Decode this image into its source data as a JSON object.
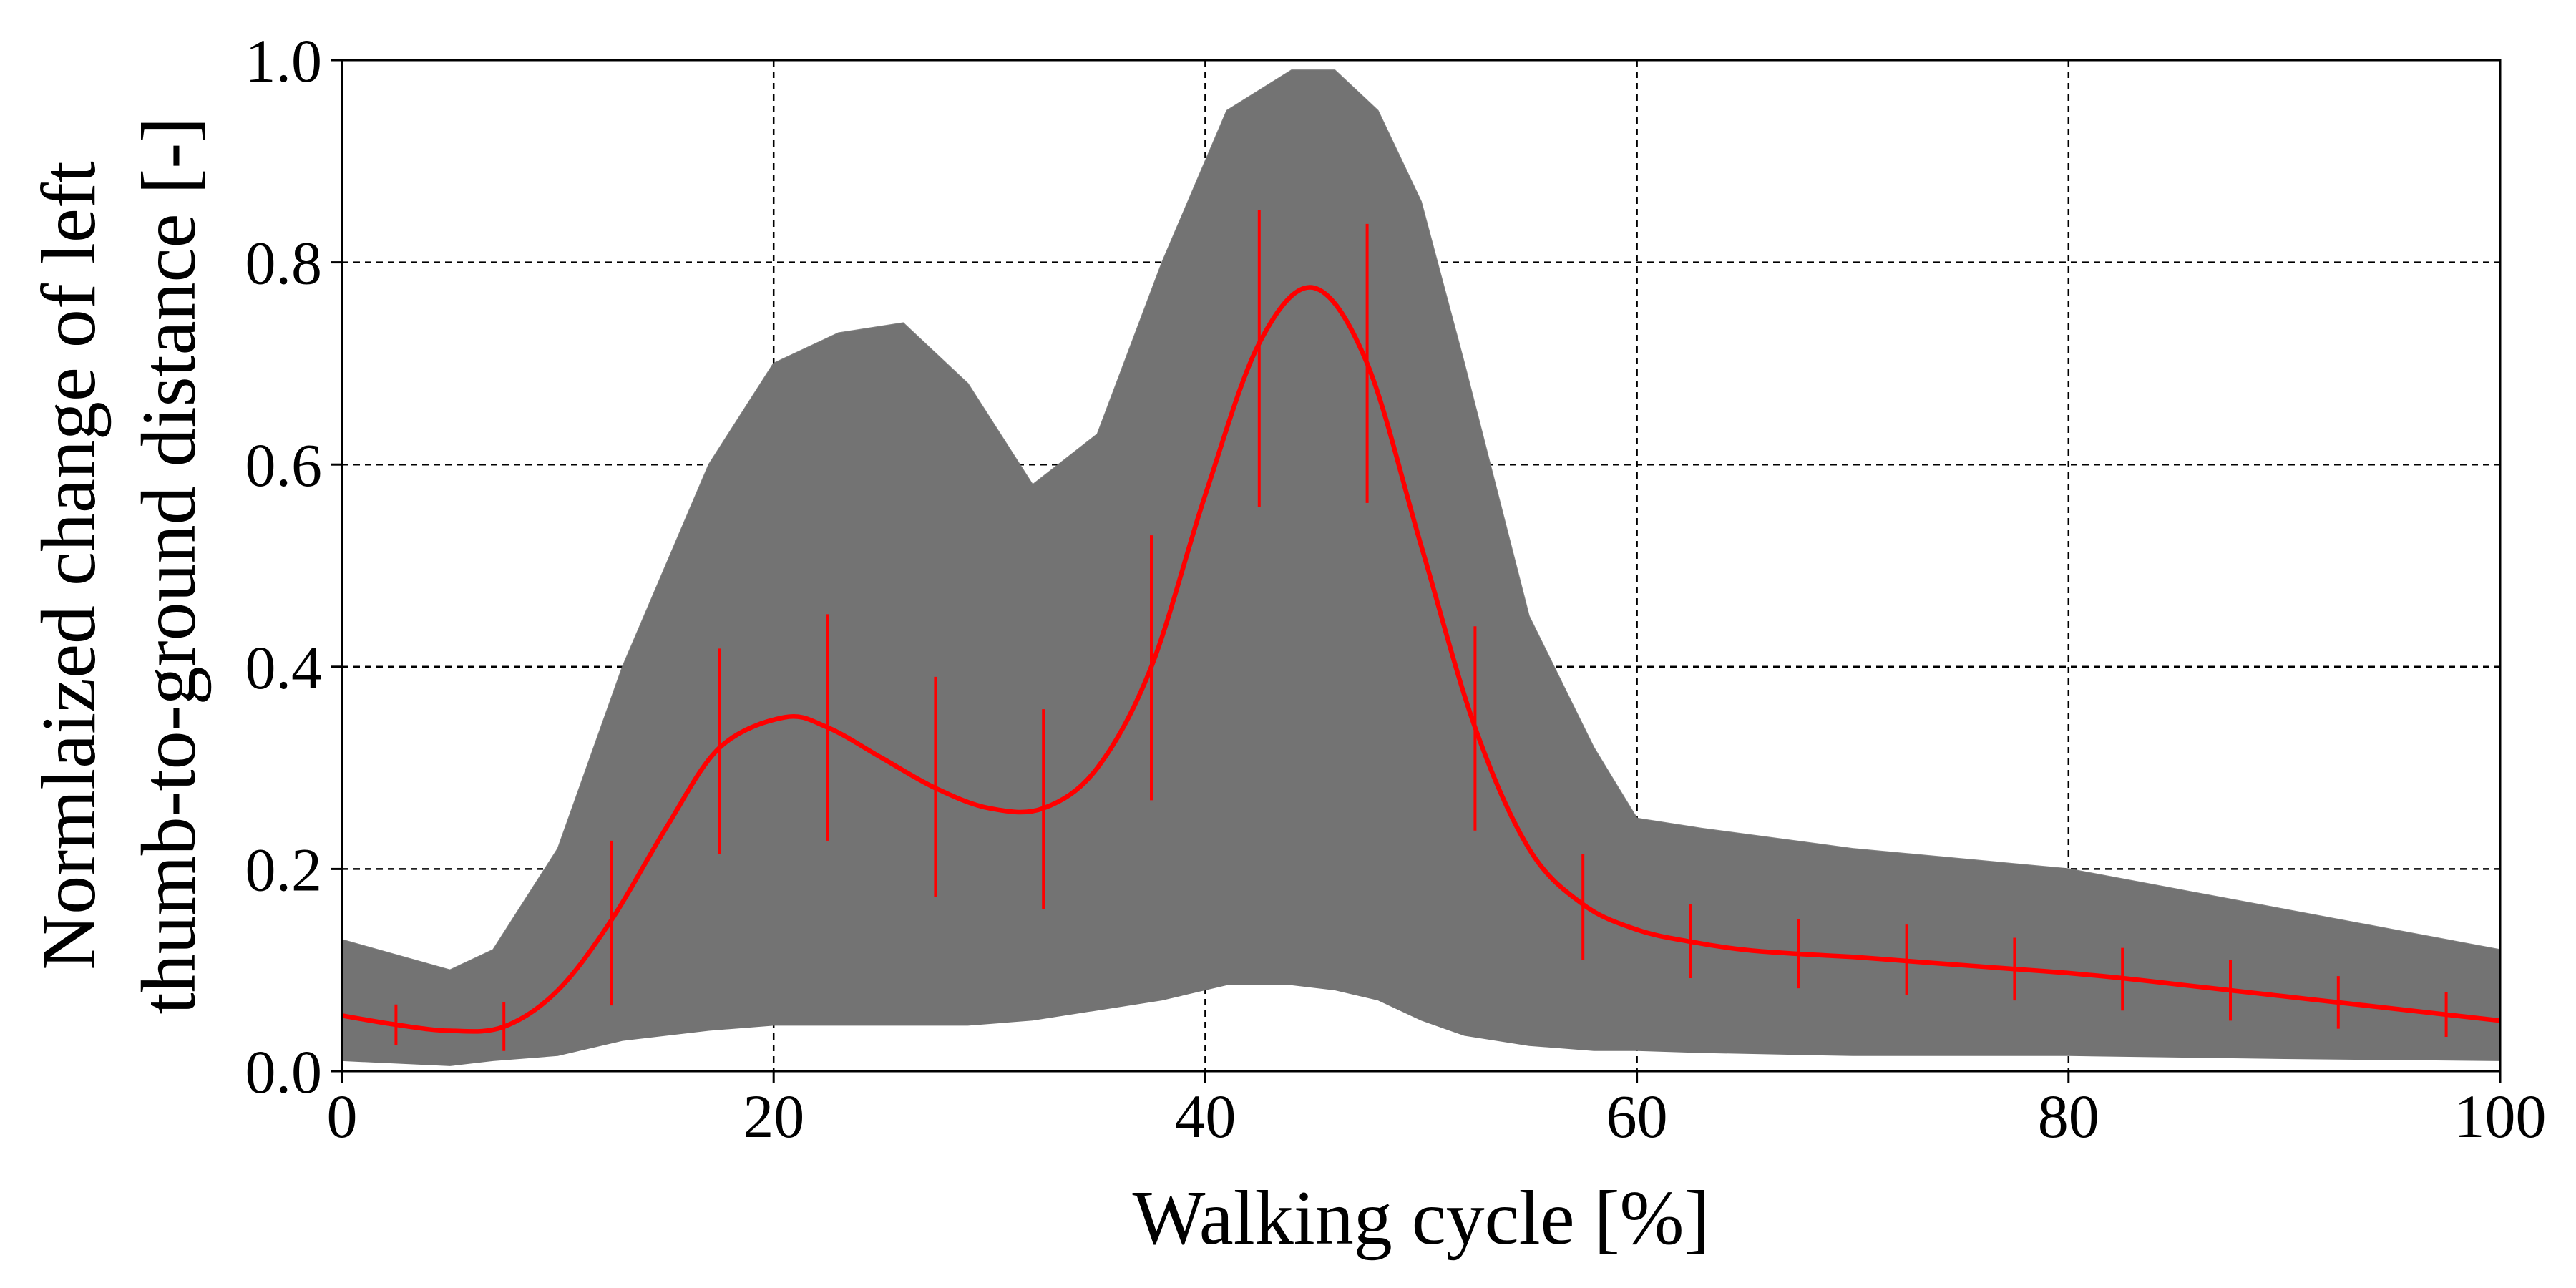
{
  "chart_data": {
    "type": "line",
    "title": "",
    "xlabel": "Walking cycle [%]",
    "ylabel": "Normlaized change of left\nthumb-to-ground distance [-]",
    "ylabel_lines": [
      "Normlaized change of left",
      "thumb-to-ground distance [-]"
    ],
    "xlim": [
      0,
      100
    ],
    "ylim": [
      0,
      1.0
    ],
    "x_ticks": [
      0,
      20,
      40,
      60,
      80,
      100
    ],
    "x_tick_labels": [
      "0",
      "20",
      "40",
      "60",
      "80",
      "100"
    ],
    "y_ticks": [
      0,
      0.2,
      0.4,
      0.6,
      0.8,
      1.0
    ],
    "y_tick_labels": [
      "0.0",
      "0.2",
      "0.4",
      "0.6",
      "0.8",
      "1.0"
    ],
    "grid": true,
    "legend": "none",
    "colors": {
      "individual_trials": "#737373",
      "mean": "#ff0000"
    },
    "individual_trials_envelope": {
      "x": [
        0,
        5,
        7,
        10,
        13,
        17,
        20,
        23,
        26,
        29,
        32,
        35,
        38,
        41,
        44,
        46,
        48,
        50,
        52,
        55,
        58,
        60,
        63,
        70,
        80,
        90,
        100
      ],
      "upper": [
        0.13,
        0.1,
        0.12,
        0.22,
        0.4,
        0.6,
        0.7,
        0.73,
        0.74,
        0.68,
        0.58,
        0.63,
        0.8,
        0.95,
        0.99,
        0.99,
        0.95,
        0.86,
        0.7,
        0.45,
        0.32,
        0.25,
        0.24,
        0.22,
        0.2,
        0.16,
        0.12
      ],
      "lower": [
        0.01,
        0.005,
        0.01,
        0.015,
        0.03,
        0.04,
        0.045,
        0.045,
        0.045,
        0.045,
        0.05,
        0.06,
        0.07,
        0.085,
        0.085,
        0.08,
        0.07,
        0.05,
        0.035,
        0.025,
        0.02,
        0.02,
        0.018,
        0.015,
        0.015,
        0.012,
        0.01
      ]
    },
    "series": [
      {
        "x": [
          0,
          2.5,
          5,
          7.5,
          10,
          12.5,
          15,
          17.5,
          20.5,
          22.5,
          25,
          27.5,
          30,
          32.5,
          35,
          37.5,
          40,
          42.5,
          45,
          47.5,
          50,
          52.5,
          55,
          57.5,
          60,
          62.5,
          65,
          67.5,
          70,
          72.5,
          75,
          77.5,
          80,
          82.5,
          85,
          87.5,
          90,
          92.5,
          95,
          97.5,
          100
        ],
        "y": [
          0.055,
          0.046,
          0.04,
          0.044,
          0.08,
          0.15,
          0.24,
          0.32,
          0.35,
          0.34,
          0.31,
          0.28,
          0.26,
          0.26,
          0.3,
          0.4,
          0.57,
          0.72,
          0.775,
          0.7,
          0.52,
          0.34,
          0.22,
          0.165,
          0.14,
          0.128,
          0.12,
          0.116,
          0.113,
          0.109,
          0.105,
          0.101,
          0.097,
          0.092,
          0.086,
          0.08,
          0.074,
          0.068,
          0.062,
          0.056,
          0.05
        ]
      }
    ],
    "error_bars": {
      "x": [
        2.5,
        7.5,
        12.5,
        17.5,
        22.5,
        27.5,
        32.5,
        37.5,
        42.5,
        47.5,
        52.5,
        57.5,
        62.5,
        67.5,
        72.5,
        77.5,
        82.5,
        87.5,
        92.5,
        97.5
      ],
      "y": [
        0.046,
        0.044,
        0.15,
        0.32,
        0.34,
        0.28,
        0.26,
        0.4,
        0.72,
        0.7,
        0.34,
        0.165,
        0.128,
        0.116,
        0.109,
        0.101,
        0.092,
        0.08,
        0.068,
        0.056
      ],
      "lower": [
        0.026,
        0.02,
        0.065,
        0.215,
        0.228,
        0.172,
        0.16,
        0.268,
        0.558,
        0.562,
        0.238,
        0.11,
        0.092,
        0.082,
        0.075,
        0.07,
        0.06,
        0.05,
        0.042,
        0.034
      ],
      "upper": [
        0.066,
        0.068,
        0.228,
        0.418,
        0.452,
        0.39,
        0.358,
        0.53,
        0.852,
        0.838,
        0.44,
        0.215,
        0.165,
        0.15,
        0.145,
        0.132,
        0.122,
        0.11,
        0.094,
        0.078
      ]
    }
  }
}
